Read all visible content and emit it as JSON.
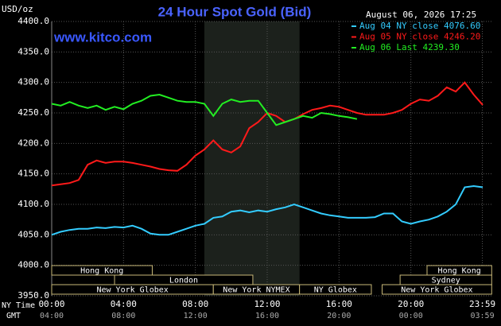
{
  "chart_data": {
    "type": "line",
    "title": "24 Hour Spot Gold (Bid)",
    "unit_label": "USD/oz",
    "site": "www.kitco.com",
    "timestamp": "August 06, 2026 17:25",
    "x_axis_label": "NY Time",
    "x2_axis_label": "GMT",
    "x": [
      0,
      0.5,
      1,
      1.5,
      2,
      2.5,
      3,
      3.5,
      4,
      4.5,
      5,
      5.5,
      6,
      6.5,
      7,
      7.5,
      8,
      8.5,
      9,
      9.5,
      10,
      10.5,
      11,
      11.5,
      12,
      12.5,
      13,
      13.5,
      14,
      14.5,
      15,
      15.5,
      16,
      16.5,
      17,
      17.5,
      18,
      18.5,
      19,
      19.5,
      20,
      20.5,
      21,
      21.5,
      22,
      22.5,
      23,
      23.5,
      24
    ],
    "series": [
      {
        "name": "Aug 04 NY close 4076.60",
        "color": "#33ccff",
        "values": [
          4050,
          4055,
          4058,
          4060,
          4060,
          4062,
          4061,
          4063,
          4062,
          4065,
          4060,
          4052,
          4050,
          4050,
          4055,
          4060,
          4065,
          4068,
          4078,
          4080,
          4088,
          4090,
          4087,
          4090,
          4088,
          4092,
          4095,
          4100,
          4095,
          4090,
          4085,
          4082,
          4080,
          4078,
          4078,
          4078,
          4079,
          4085,
          4085,
          4072,
          4068,
          4072,
          4075,
          4080,
          4088,
          4100,
          4128,
          4130,
          4128
        ]
      },
      {
        "name": "Aug 05 NY close 4246.20",
        "color": "#ff1a1a",
        "values": [
          4131,
          4133,
          4135,
          4140,
          4165,
          4172,
          4168,
          4170,
          4170,
          4168,
          4165,
          4162,
          4158,
          4156,
          4155,
          4165,
          4180,
          4190,
          4205,
          4190,
          4185,
          4195,
          4225,
          4235,
          4250,
          4245,
          4235,
          4240,
          4248,
          4255,
          4258,
          4262,
          4260,
          4255,
          4250,
          4247,
          4247,
          4247,
          4250,
          4255,
          4265,
          4272,
          4270,
          4278,
          4292,
          4285,
          4300,
          4280,
          4263
        ]
      },
      {
        "name": "Aug 06 Last 4239.30",
        "color": "#22ee22",
        "values": [
          4265,
          4262,
          4268,
          4262,
          4258,
          4262,
          4255,
          4260,
          4256,
          4265,
          4270,
          4278,
          4280,
          4275,
          4270,
          4268,
          4268,
          4265,
          4245,
          4265,
          4272,
          4268,
          4270,
          4270,
          4250,
          4230,
          4235,
          4240,
          4245,
          4242,
          4250,
          4248,
          4245,
          4243,
          4240,
          null,
          null,
          null,
          null,
          null,
          null,
          null,
          null,
          null,
          null,
          null,
          null,
          null,
          null
        ]
      }
    ],
    "xlim": [
      0,
      24
    ],
    "xticks": [
      {
        "value": 0,
        "label": "00:00"
      },
      {
        "value": 4,
        "label": "04:00"
      },
      {
        "value": 8,
        "label": "08:00"
      },
      {
        "value": 12,
        "label": "12:00"
      },
      {
        "value": 16,
        "label": "16:00"
      },
      {
        "value": 20,
        "label": "20:00"
      },
      {
        "value": 23.98,
        "label": "23:59"
      }
    ],
    "x2ticks": [
      {
        "value": 0,
        "label": "04:00"
      },
      {
        "value": 4,
        "label": "08:00"
      },
      {
        "value": 8,
        "label": "12:00"
      },
      {
        "value": 12,
        "label": "16:00"
      },
      {
        "value": 16,
        "label": "20:00"
      },
      {
        "value": 20,
        "label": "00:00"
      },
      {
        "value": 23.98,
        "label": "03:59"
      }
    ],
    "ylim": [
      3950,
      4400
    ],
    "yticks": [
      {
        "value": 3950,
        "label": "3950.0"
      },
      {
        "value": 4000,
        "label": "4000.0"
      },
      {
        "value": 4050,
        "label": "4050.0"
      },
      {
        "value": 4100,
        "label": "4100.0"
      },
      {
        "value": 4150,
        "label": "4150.0"
      },
      {
        "value": 4200,
        "label": "4200.0"
      },
      {
        "value": 4250,
        "label": "4250.0"
      },
      {
        "value": 4300,
        "label": "4300.0"
      },
      {
        "value": 4350,
        "label": "4350.0"
      },
      {
        "value": 4400,
        "label": "4400.0"
      }
    ],
    "grid": true,
    "shaded_hours": [
      8.5,
      13.8
    ],
    "sessions": [
      {
        "label": "Hong Kong",
        "start": 0,
        "end": 5.6,
        "row": 0
      },
      {
        "label": "London",
        "start": 3.5,
        "end": 11.2,
        "row": 1
      },
      {
        "label": "New York Globex",
        "start": 0,
        "end": 9,
        "row": 2
      },
      {
        "label": "New York NYMEX",
        "start": 9,
        "end": 13.8,
        "row": 2
      },
      {
        "label": "NY Globex",
        "start": 13.8,
        "end": 17.8,
        "row": 2
      },
      {
        "label": "Hong Kong",
        "start": 20.9,
        "end": 24.5,
        "row": 0
      },
      {
        "label": "Sydney",
        "start": 19.4,
        "end": 24.5,
        "row": 1
      },
      {
        "label": "New York Globex",
        "start": 18.4,
        "end": 24.5,
        "row": 2
      }
    ]
  }
}
